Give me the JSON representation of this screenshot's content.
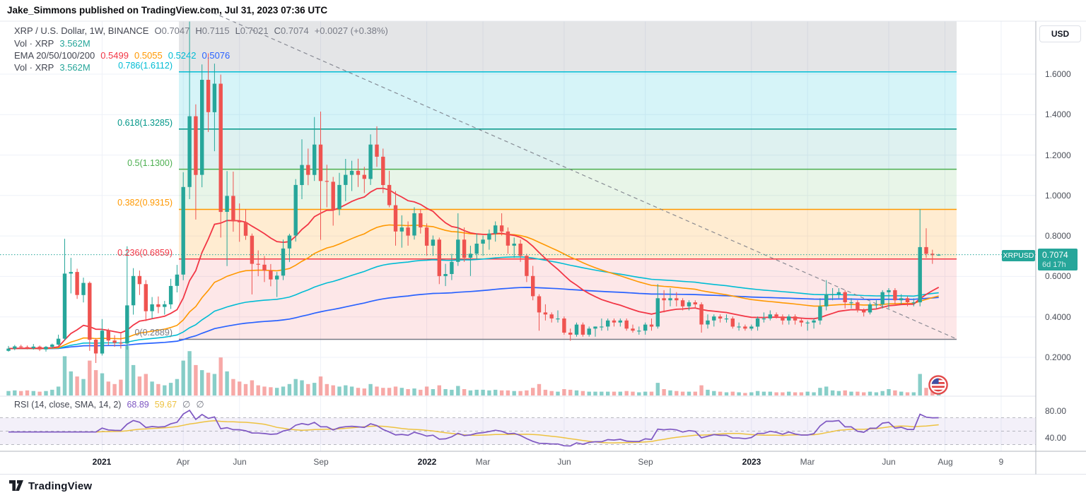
{
  "header": {
    "publisher_line": "Jake_Simmons published on TradingView.com, Jul 31, 2023 07:36 UTC"
  },
  "symbol_legend": {
    "title": "XRP / U.S. Dollar, 1W, BINANCE",
    "ohlc": [
      {
        "k": "O",
        "v": "0.7047"
      },
      {
        "k": "H",
        "v": "0.7115"
      },
      {
        "k": "L",
        "v": "0.7021"
      },
      {
        "k": "C",
        "v": "0.7074"
      }
    ],
    "change": "+0.0027 (+0.38%)"
  },
  "indicators": {
    "vol_row": {
      "title": "Vol · XRP",
      "value": "3.562M"
    },
    "ema_row": {
      "title": "EMA 20/50/100/200",
      "values": [
        {
          "v": "0.5499",
          "color": "#f23645"
        },
        {
          "v": "0.5055",
          "color": "#ff9800"
        },
        {
          "v": "0.5242",
          "color": "#00bcd4"
        },
        {
          "v": "0.5076",
          "color": "#2962ff"
        }
      ]
    },
    "vol_row2": {
      "title": "Vol · XRP",
      "value": "3.562M"
    },
    "rsi_row": {
      "title": "RSI (14, close, SMA, 14, 2)",
      "rsi_value": "68.89",
      "sma_value": "59.67",
      "hidden_icons": [
        "∅",
        "∅"
      ]
    }
  },
  "price_axis": {
    "currency": "USD",
    "ticks": [
      "1.6000",
      "1.4000",
      "1.2000",
      "1.0000",
      "0.8000",
      "0.6000",
      "0.4000",
      "0.2000"
    ],
    "tick_values": [
      1.6,
      1.4,
      1.2,
      1.0,
      0.8,
      0.6,
      0.4,
      0.2
    ],
    "last_price_badge": {
      "symbol": "XRPUSD",
      "price": "0.7074",
      "countdown": "6d 17h",
      "color": "#26a69a"
    }
  },
  "rsi_axis": {
    "ticks": [
      "80.00",
      "40.00"
    ],
    "tick_values": [
      80,
      40
    ],
    "guide_levels": [
      70,
      50,
      30
    ]
  },
  "time_axis": {
    "ticks": [
      {
        "label": "2021",
        "week": 15,
        "major": true
      },
      {
        "label": "Apr",
        "week": 28,
        "major": false
      },
      {
        "label": "Jun",
        "week": 37,
        "major": false
      },
      {
        "label": "Sep",
        "week": 50,
        "major": false
      },
      {
        "label": "2022",
        "week": 67,
        "major": true
      },
      {
        "label": "Mar",
        "week": 76,
        "major": false
      },
      {
        "label": "Jun",
        "week": 89,
        "major": false
      },
      {
        "label": "Sep",
        "week": 102,
        "major": false
      },
      {
        "label": "2023",
        "week": 119,
        "major": true
      },
      {
        "label": "Mar",
        "week": 128,
        "major": false
      },
      {
        "label": "Jun",
        "week": 141,
        "major": false
      },
      {
        "label": "Aug",
        "week": 150,
        "major": false
      },
      {
        "label": "9",
        "week": 159,
        "major": false
      }
    ]
  },
  "fib": {
    "levels": [
      {
        "ratio": "1",
        "value": 1.971,
        "label": "",
        "color": "#9598a1"
      },
      {
        "ratio": "0.786",
        "value": 1.6112,
        "label": "0.786(1.6112)",
        "color": "#00bcd4"
      },
      {
        "ratio": "0.618",
        "value": 1.3285,
        "label": "0.618(1.3285)",
        "color": "#009688"
      },
      {
        "ratio": "0.5",
        "value": 1.13,
        "label": "0.5(1.1300)",
        "color": "#4caf50"
      },
      {
        "ratio": "0.382",
        "value": 0.9315,
        "label": "0.382(0.9315)",
        "color": "#ff9800"
      },
      {
        "ratio": "0.236",
        "value": 0.6859,
        "label": "0.236(0.6859)",
        "color": "#f23645"
      },
      {
        "ratio": "0",
        "value": 0.2889,
        "label": "0(0.2889)",
        "color": "#787b86"
      }
    ],
    "band_colors": [
      "rgba(120,123,134,0.20)",
      "rgba(0,188,212,0.16)",
      "rgba(0,150,136,0.13)",
      "rgba(76,175,80,0.13)",
      "rgba(255,152,0,0.18)",
      "rgba(242,54,69,0.12)"
    ]
  },
  "footer": {
    "brand": "TradingView"
  },
  "colors": {
    "up": "#26a69a",
    "down": "#ef5350",
    "vol_up": "rgba(38,166,154,0.55)",
    "vol_down": "rgba(239,83,80,0.5)",
    "ema20": "#f23645",
    "ema50": "#ff9800",
    "ema100": "#00bcd4",
    "ema200": "#2962ff",
    "rsi": "#7e57c2",
    "rsi_sma": "#edc240",
    "grid": "#eef1f8",
    "trendline": "#787b86",
    "accent": "#26a69a"
  },
  "chart_data": {
    "type": "candlestick",
    "title": "XRP / U.S. Dollar, 1W, BINANCE",
    "x_unit": "week",
    "ylim_price": [
      0.15,
      1.87
    ],
    "ylim_rsi": [
      18,
      96
    ],
    "legend_position": "top-left",
    "grid": true,
    "ema_periods": [
      20,
      50,
      100,
      200
    ],
    "rsi_period": 14,
    "rsi_smoothing_period": 14,
    "ohlc": [
      [
        0.232,
        0.256,
        0.228,
        0.243
      ],
      [
        0.243,
        0.261,
        0.235,
        0.254
      ],
      [
        0.254,
        0.262,
        0.242,
        0.251
      ],
      [
        0.251,
        0.258,
        0.239,
        0.245
      ],
      [
        0.245,
        0.266,
        0.238,
        0.253
      ],
      [
        0.253,
        0.258,
        0.231,
        0.239
      ],
      [
        0.239,
        0.256,
        0.228,
        0.252
      ],
      [
        0.252,
        0.268,
        0.244,
        0.263
      ],
      [
        0.263,
        0.312,
        0.258,
        0.292
      ],
      [
        0.292,
        0.786,
        0.283,
        0.614
      ],
      [
        0.614,
        0.692,
        0.516,
        0.622
      ],
      [
        0.622,
        0.638,
        0.489,
        0.508
      ],
      [
        0.508,
        0.594,
        0.471,
        0.568
      ],
      [
        0.568,
        0.575,
        0.232,
        0.287
      ],
      [
        0.287,
        0.295,
        0.172,
        0.219
      ],
      [
        0.219,
        0.389,
        0.209,
        0.332
      ],
      [
        0.332,
        0.342,
        0.261,
        0.283
      ],
      [
        0.283,
        0.309,
        0.252,
        0.272
      ],
      [
        0.272,
        0.318,
        0.243,
        0.268
      ],
      [
        0.268,
        0.749,
        0.238,
        0.457
      ],
      [
        0.457,
        0.641,
        0.411,
        0.602
      ],
      [
        0.602,
        0.629,
        0.508,
        0.562
      ],
      [
        0.562,
        0.582,
        0.379,
        0.428
      ],
      [
        0.428,
        0.498,
        0.392,
        0.462
      ],
      [
        0.462,
        0.501,
        0.418,
        0.449
      ],
      [
        0.449,
        0.479,
        0.411,
        0.462
      ],
      [
        0.462,
        0.588,
        0.439,
        0.553
      ],
      [
        0.553,
        0.657,
        0.521,
        0.609
      ],
      [
        0.609,
        1.115,
        0.581,
        1.042
      ],
      [
        1.042,
        1.966,
        0.982,
        1.392
      ],
      [
        1.392,
        1.451,
        0.881,
        1.102
      ],
      [
        1.102,
        1.648,
        1.041,
        1.572
      ],
      [
        1.572,
        1.703,
        1.314,
        1.412
      ],
      [
        1.412,
        1.652,
        1.219,
        1.553
      ],
      [
        1.553,
        1.598,
        0.792,
        0.919
      ],
      [
        0.919,
        1.121,
        0.651,
        0.998
      ],
      [
        0.998,
        1.118,
        0.821,
        0.872
      ],
      [
        0.872,
        0.961,
        0.771,
        0.868
      ],
      [
        0.868,
        0.932,
        0.781,
        0.801
      ],
      [
        0.801,
        0.812,
        0.511,
        0.662
      ],
      [
        0.662,
        0.729,
        0.601,
        0.658
      ],
      [
        0.658,
        0.701,
        0.572,
        0.629
      ],
      [
        0.629,
        0.661,
        0.551,
        0.585
      ],
      [
        0.585,
        0.622,
        0.498,
        0.604
      ],
      [
        0.604,
        0.782,
        0.582,
        0.738
      ],
      [
        0.738,
        0.811,
        0.671,
        0.802
      ],
      [
        0.802,
        1.081,
        0.772,
        1.052
      ],
      [
        1.052,
        1.278,
        0.982,
        1.151
      ],
      [
        1.151,
        1.232,
        1.051,
        1.102
      ],
      [
        1.102,
        1.388,
        1.072,
        1.252
      ],
      [
        1.252,
        1.415,
        0.781,
        1.072
      ],
      [
        1.072,
        1.152,
        0.942,
        1.068
      ],
      [
        1.068,
        1.092,
        0.851,
        0.932
      ],
      [
        0.932,
        1.112,
        0.902,
        1.052
      ],
      [
        1.052,
        1.181,
        0.972,
        1.102
      ],
      [
        1.102,
        1.172,
        1.022,
        1.122
      ],
      [
        1.122,
        1.182,
        1.042,
        1.102
      ],
      [
        1.102,
        1.142,
        1.012,
        1.082
      ],
      [
        1.082,
        1.302,
        1.052,
        1.252
      ],
      [
        1.252,
        1.342,
        1.142,
        1.192
      ],
      [
        1.192,
        1.232,
        1.012,
        1.052
      ],
      [
        1.052,
        1.122,
        0.942,
        0.952
      ],
      [
        0.952,
        1.022,
        0.752,
        0.822
      ],
      [
        0.822,
        0.902,
        0.742,
        0.842
      ],
      [
        0.842,
        0.872,
        0.752,
        0.802
      ],
      [
        0.802,
        0.942,
        0.782,
        0.912
      ],
      [
        0.912,
        0.932,
        0.812,
        0.842
      ],
      [
        0.842,
        0.862,
        0.702,
        0.752
      ],
      [
        0.752,
        0.802,
        0.702,
        0.782
      ],
      [
        0.782,
        0.792,
        0.562,
        0.602
      ],
      [
        0.602,
        0.662,
        0.552,
        0.612
      ],
      [
        0.612,
        0.712,
        0.582,
        0.672
      ],
      [
        0.672,
        0.912,
        0.652,
        0.782
      ],
      [
        0.782,
        0.842,
        0.672,
        0.692
      ],
      [
        0.692,
        0.752,
        0.602,
        0.712
      ],
      [
        0.712,
        0.812,
        0.682,
        0.762
      ],
      [
        0.762,
        0.802,
        0.702,
        0.782
      ],
      [
        0.782,
        0.832,
        0.732,
        0.812
      ],
      [
        0.812,
        0.872,
        0.772,
        0.852
      ],
      [
        0.852,
        0.912,
        0.802,
        0.822
      ],
      [
        0.822,
        0.842,
        0.712,
        0.752
      ],
      [
        0.752,
        0.792,
        0.692,
        0.762
      ],
      [
        0.762,
        0.782,
        0.672,
        0.702
      ],
      [
        0.702,
        0.712,
        0.572,
        0.602
      ],
      [
        0.602,
        0.652,
        0.482,
        0.502
      ],
      [
        0.502,
        0.512,
        0.332,
        0.422
      ],
      [
        0.422,
        0.462,
        0.382,
        0.412
      ],
      [
        0.412,
        0.422,
        0.372,
        0.392
      ],
      [
        0.392,
        0.432,
        0.372,
        0.392
      ],
      [
        0.392,
        0.402,
        0.312,
        0.322
      ],
      [
        0.322,
        0.342,
        0.282,
        0.312
      ],
      [
        0.312,
        0.372,
        0.302,
        0.362
      ],
      [
        0.362,
        0.372,
        0.302,
        0.312
      ],
      [
        0.312,
        0.352,
        0.302,
        0.342
      ],
      [
        0.342,
        0.352,
        0.302,
        0.352
      ],
      [
        0.352,
        0.392,
        0.332,
        0.352
      ],
      [
        0.352,
        0.392,
        0.332,
        0.382
      ],
      [
        0.382,
        0.392,
        0.352,
        0.372
      ],
      [
        0.372,
        0.392,
        0.352,
        0.382
      ],
      [
        0.382,
        0.392,
        0.332,
        0.342
      ],
      [
        0.342,
        0.362,
        0.322,
        0.332
      ],
      [
        0.332,
        0.352,
        0.312,
        0.332
      ],
      [
        0.332,
        0.372,
        0.312,
        0.362
      ],
      [
        0.362,
        0.392,
        0.332,
        0.352
      ],
      [
        0.352,
        0.562,
        0.342,
        0.492
      ],
      [
        0.492,
        0.532,
        0.422,
        0.482
      ],
      [
        0.482,
        0.542,
        0.452,
        0.492
      ],
      [
        0.492,
        0.522,
        0.452,
        0.482
      ],
      [
        0.482,
        0.492,
        0.432,
        0.452
      ],
      [
        0.452,
        0.482,
        0.432,
        0.472
      ],
      [
        0.472,
        0.482,
        0.442,
        0.462
      ],
      [
        0.462,
        0.472,
        0.322,
        0.362
      ],
      [
        0.362,
        0.412,
        0.342,
        0.382
      ],
      [
        0.382,
        0.412,
        0.352,
        0.402
      ],
      [
        0.402,
        0.412,
        0.372,
        0.392
      ],
      [
        0.392,
        0.412,
        0.372,
        0.392
      ],
      [
        0.392,
        0.402,
        0.342,
        0.352
      ],
      [
        0.352,
        0.372,
        0.332,
        0.352
      ],
      [
        0.352,
        0.362,
        0.332,
        0.342
      ],
      [
        0.342,
        0.362,
        0.332,
        0.352
      ],
      [
        0.352,
        0.402,
        0.332,
        0.392
      ],
      [
        0.392,
        0.422,
        0.372,
        0.392
      ],
      [
        0.392,
        0.432,
        0.382,
        0.412
      ],
      [
        0.412,
        0.422,
        0.392,
        0.402
      ],
      [
        0.402,
        0.412,
        0.362,
        0.382
      ],
      [
        0.382,
        0.412,
        0.362,
        0.402
      ],
      [
        0.402,
        0.412,
        0.362,
        0.382
      ],
      [
        0.382,
        0.392,
        0.352,
        0.372
      ],
      [
        0.372,
        0.382,
        0.332,
        0.372
      ],
      [
        0.372,
        0.392,
        0.342,
        0.382
      ],
      [
        0.382,
        0.492,
        0.362,
        0.452
      ],
      [
        0.452,
        0.582,
        0.432,
        0.512
      ],
      [
        0.512,
        0.542,
        0.482,
        0.512
      ],
      [
        0.512,
        0.542,
        0.492,
        0.522
      ],
      [
        0.522,
        0.532,
        0.442,
        0.472
      ],
      [
        0.472,
        0.492,
        0.442,
        0.472
      ],
      [
        0.472,
        0.482,
        0.422,
        0.432
      ],
      [
        0.432,
        0.442,
        0.402,
        0.422
      ],
      [
        0.422,
        0.472,
        0.412,
        0.462
      ],
      [
        0.462,
        0.482,
        0.442,
        0.462
      ],
      [
        0.462,
        0.532,
        0.442,
        0.522
      ],
      [
        0.522,
        0.542,
        0.442,
        0.532
      ],
      [
        0.532,
        0.542,
        0.462,
        0.482
      ],
      [
        0.482,
        0.512,
        0.462,
        0.492
      ],
      [
        0.492,
        0.502,
        0.452,
        0.472
      ],
      [
        0.472,
        0.492,
        0.452,
        0.472
      ],
      [
        0.472,
        0.932,
        0.452,
        0.745
      ],
      [
        0.745,
        0.838,
        0.692,
        0.712
      ],
      [
        0.712,
        0.732,
        0.662,
        0.705
      ],
      [
        0.7047,
        0.7115,
        0.7021,
        0.7074
      ]
    ],
    "volume": [
      7,
      8,
      7,
      8,
      7,
      6,
      7,
      9,
      14,
      62,
      38,
      30,
      26,
      55,
      40,
      35,
      22,
      18,
      25,
      78,
      48,
      30,
      34,
      22,
      18,
      16,
      20,
      26,
      55,
      70,
      48,
      40,
      36,
      34,
      60,
      38,
      26,
      22,
      18,
      24,
      16,
      14,
      13,
      12,
      14,
      18,
      26,
      24,
      18,
      20,
      30,
      18,
      16,
      14,
      16,
      14,
      12,
      11,
      18,
      14,
      12,
      12,
      14,
      12,
      10,
      11,
      9,
      14,
      10,
      16,
      10,
      9,
      15,
      10,
      8,
      9,
      9,
      8,
      9,
      8,
      8,
      7,
      7,
      8,
      12,
      18,
      9,
      7,
      6,
      10,
      9,
      8,
      7,
      6,
      6,
      6,
      6,
      6,
      6,
      7,
      6,
      5,
      6,
      6,
      20,
      10,
      8,
      7,
      6,
      6,
      6,
      16,
      9,
      7,
      6,
      5,
      6,
      5,
      4,
      5,
      7,
      6,
      6,
      5,
      5,
      6,
      5,
      5,
      6,
      5,
      12,
      14,
      8,
      7,
      8,
      6,
      6,
      5,
      6,
      5,
      7,
      10,
      8,
      6,
      5,
      5,
      34,
      12,
      9,
      3.562
    ]
  }
}
